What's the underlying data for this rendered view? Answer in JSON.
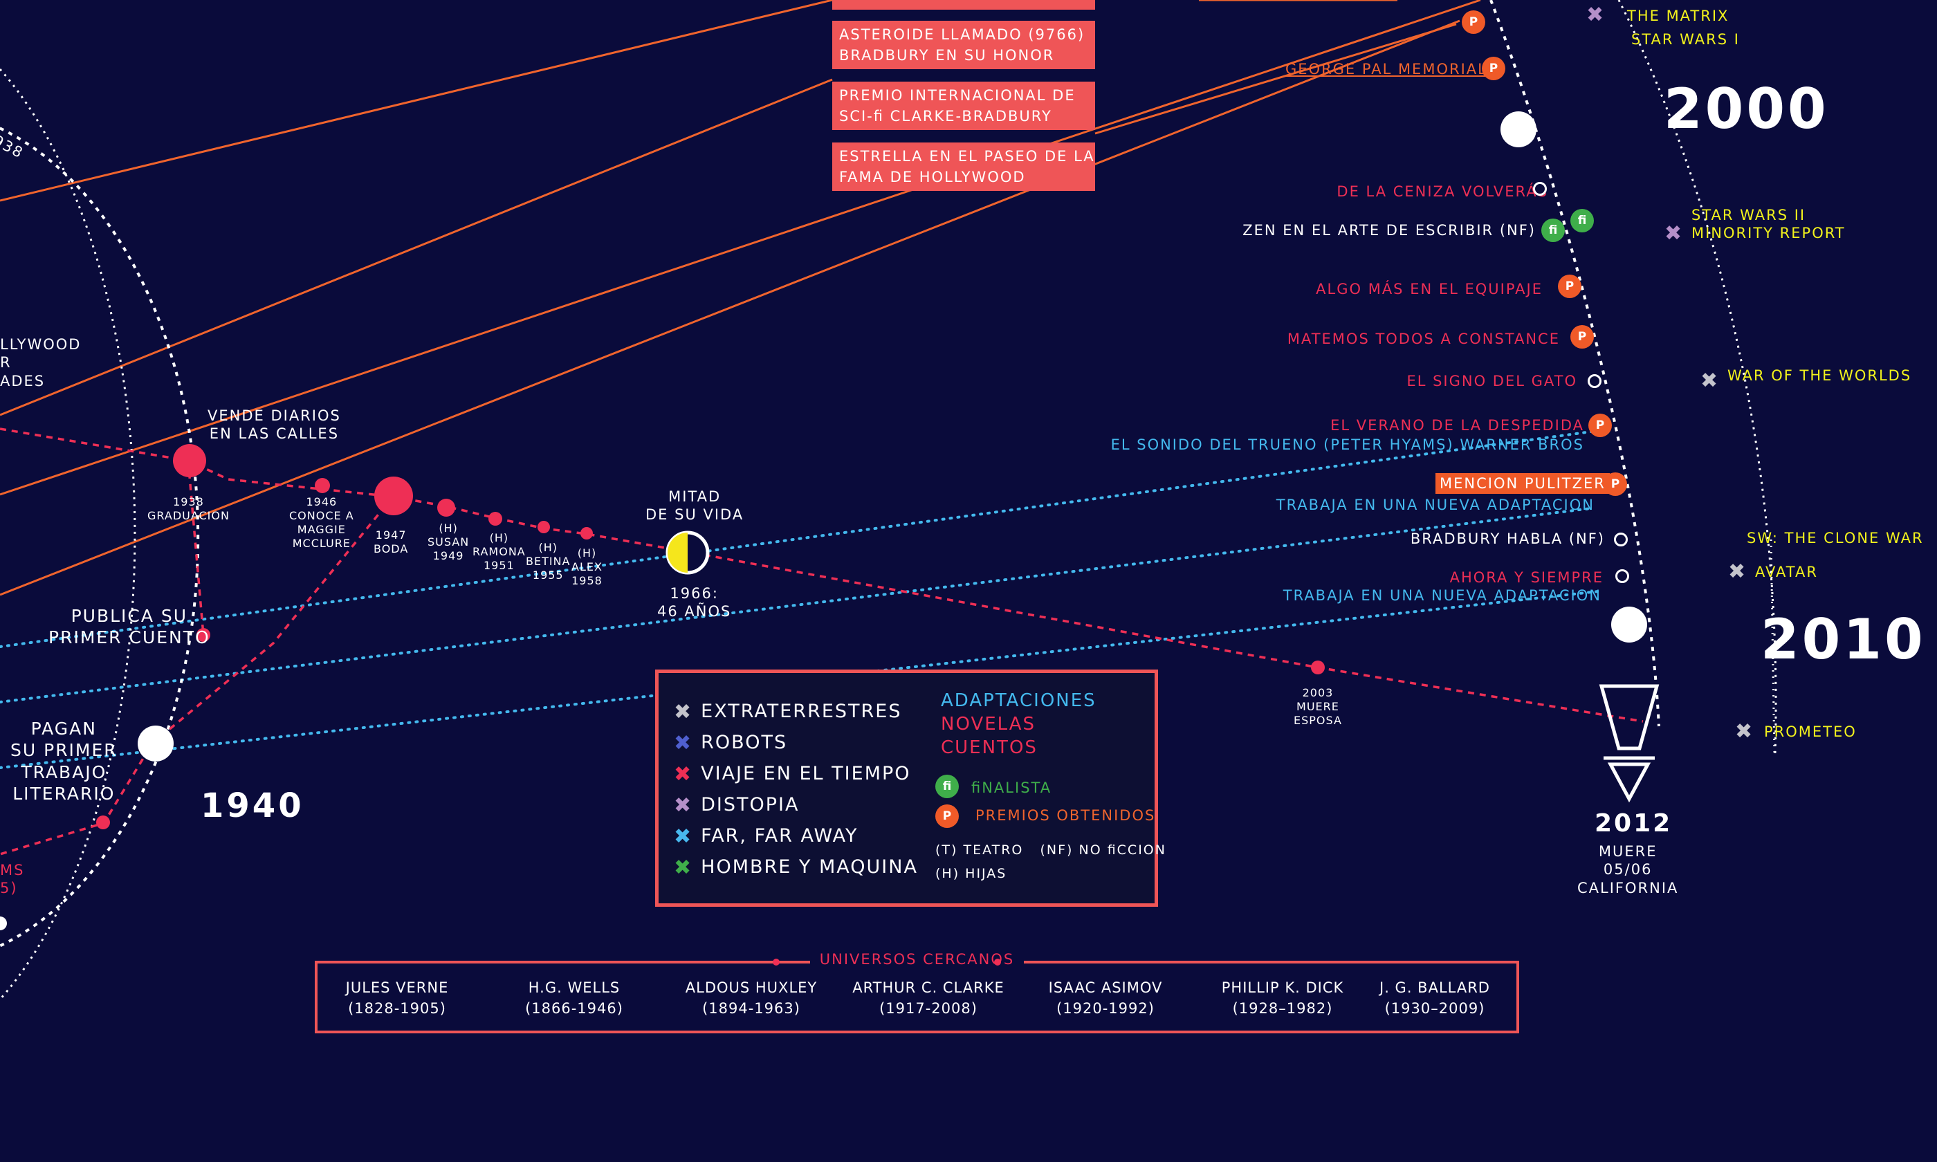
{
  "years": {
    "y1940": "1940",
    "y2000": "2000",
    "y2010": "2010"
  },
  "left_text": {
    "hollywood_partial": "LLYWOOD\nR\nADES",
    "y1938_partial": "938",
    "ms_partial": "MS\n5)"
  },
  "life_events": {
    "vende_diarios": "VENDE DIARIOS\nEN LAS CALLES",
    "graduacion": "1938\nGRADUACION",
    "conoce_maggie": "1946\nCONOCE A\nMAGGIE\nMCCLURE",
    "boda": "1947\nBODA",
    "susan": "(H)\nSUSAN\n1949",
    "ramona": "(H)\nRAMONA\n1951",
    "betina": "(H)\nBETINA\n1955",
    "alex": "(H)\nALEX\n1958",
    "mitad_vida": "MITAD\nDE SU VIDA",
    "mitad_fecha": "1966:\n46 AÑOS",
    "publica_cuento": "PUBLICA SU\nPRIMER CUENTO",
    "pagan_trabajo": "PAGAN\nSU PRIMER\nTRABAJO\nLITERARIO",
    "muere_esposa": "2003\nMUERE\nESPOSA",
    "muere_anio": "2012",
    "muere_detalle": "MUERE\n05/06\nCALIFORNIA"
  },
  "awards": [
    "ASTEROIDE LLAMADO (9766)\nBRADBURY EN SU HONOR",
    "PREMIO INTERNACIONAL DE\nSCI-ﬁ CLARKE-BRADBURY",
    "ESTRELLA EN EL PASEO DE LA\nFAMA DE HOLLYWOOD"
  ],
  "works": {
    "george_pal": "GEORGE PAL MEMORIAL",
    "ceniza": "DE LA CENIZA VOLVERÁS",
    "zen": "ZEN EN EL ARTE DE ESCRIBIR (NF)",
    "equipaje": "ALGO MÁS EN EL EQUIPAJE",
    "constance": "MATEMOS TODOS A CONSTANCE",
    "gato": "EL SIGNO DEL GATO",
    "verano": "EL VERANO DE LA DESPEDIDA",
    "sonido": "EL SONIDO DEL TRUENO (PETER HYAMS) WARNER BROS",
    "pulitzer": "MENCION PULITZER",
    "adaptacion1": "TRABAJA EN UNA NUEVA ADAPTACION",
    "bradbury_habla": "BRADBURY HABLA (NF)",
    "ahora": "AHORA Y SIEMPRE",
    "adaptacion2": "TRABAJA EN UNA NUEVA ADAPTACION"
  },
  "badges": {
    "p": "P",
    "fi": "ﬁ"
  },
  "films": {
    "matrix": "THE MATRIX",
    "sw1": "STAR WARS I",
    "sw2_minority": "STAR WARS II\nMINORITY REPORT",
    "war_worlds": "WAR OF THE WORLDS",
    "clone_war": "SW: THE CLONE WAR",
    "avatar": "AVATAR",
    "prometeo": "PROMETEO"
  },
  "legend": {
    "categories": [
      {
        "label": "EXTRATERRESTRES",
        "color": "#c4c4cc"
      },
      {
        "label": "ROBOTS",
        "color": "#4f5fcf"
      },
      {
        "label": "VIAJE EN EL TIEMPO",
        "color": "#ee2f55"
      },
      {
        "label": "DISTOPIA",
        "color": "#b58fc9"
      },
      {
        "label": "FAR, FAR AWAY",
        "color": "#48b8ee"
      },
      {
        "label": "HOMBRE Y MAQUINA",
        "color": "#3fae4a"
      }
    ],
    "adaptaciones": "ADAPTACIONES",
    "novelas": "NOVELAS",
    "cuentos": "CUENTOS",
    "finalista": "ﬁNALISTA",
    "premios": "PREMIOS OBTENIDOS",
    "notes1": "(T) TEATRO   (NF) NO ﬁCCION",
    "notes2": "(H) HIJAS"
  },
  "universes": {
    "title": "UNIVERSOS CERCANOS",
    "authors": [
      {
        "name": "JULES VERNE",
        "years": "(1828-1905)"
      },
      {
        "name": "H.G. WELLS",
        "years": "(1866-1946)"
      },
      {
        "name": "ALDOUS HUXLEY",
        "years": "(1894-1963)"
      },
      {
        "name": "ARTHUR C. CLARKE",
        "years": "(1917-2008)"
      },
      {
        "name": "ISAAC ASIMOV",
        "years": "(1920-1992)"
      },
      {
        "name": "PHILLIP K. DICK",
        "years": "(1928–1982)"
      },
      {
        "name": "J. G. BALLARD",
        "years": "(1930–2009)"
      }
    ]
  },
  "colors": {
    "background": "#0a0b3b",
    "orange_line": "#f0642d",
    "pink_line": "#ee2f55",
    "cyan_line": "#44b9ee",
    "award_box": "#ef5557",
    "film_yellow": "#f2f21c"
  }
}
